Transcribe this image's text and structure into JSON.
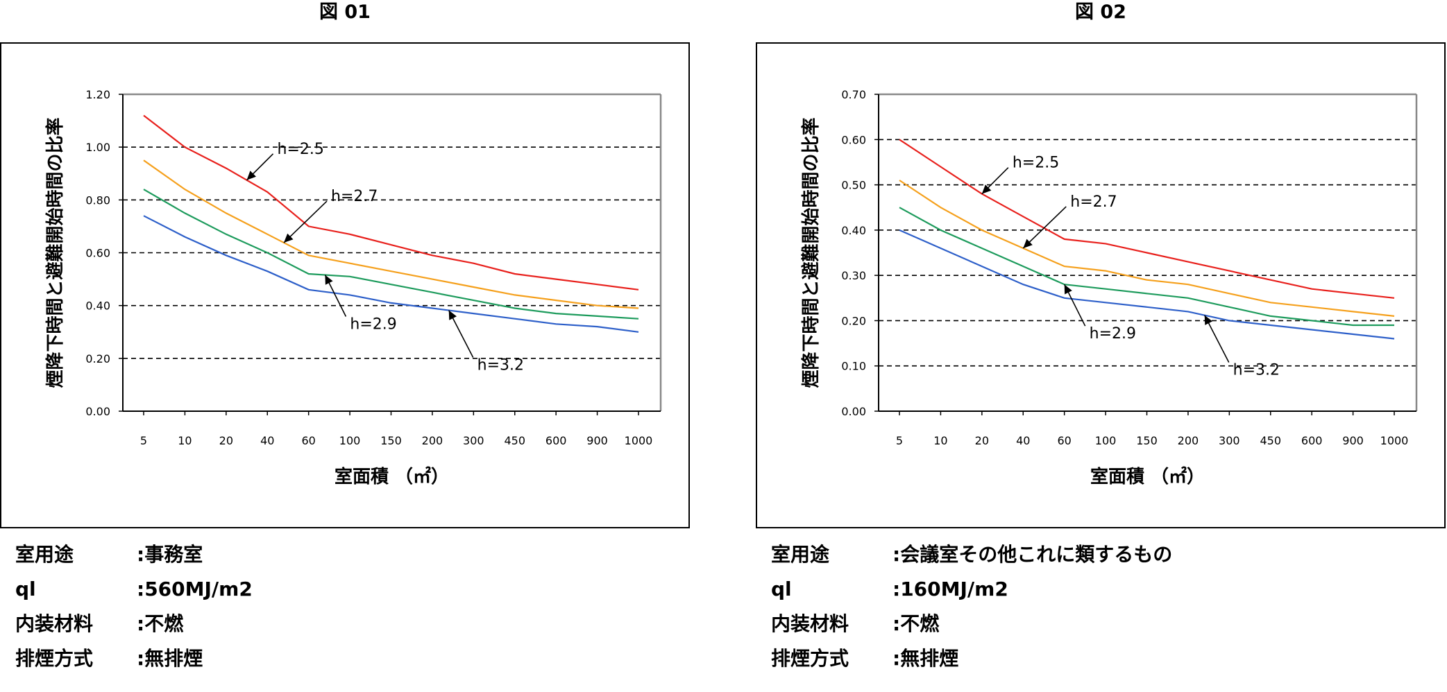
{
  "chart_data": [
    {
      "type": "line",
      "title": "図 01",
      "xlabel": "室面積 （㎡）",
      "ylabel": "煙降下時間と避難開始時間の比率",
      "categories": [
        "5",
        "10",
        "20",
        "40",
        "60",
        "100",
        "150",
        "200",
        "300",
        "450",
        "600",
        "900",
        "1000"
      ],
      "ylim": [
        0,
        1.2
      ],
      "yticks": [
        "0.00",
        "0.20",
        "0.40",
        "0.60",
        "0.80",
        "1.00",
        "1.20"
      ],
      "grid": "horizontal dashed",
      "colors": {
        "h=2.5": "#e8201c",
        "h=2.7": "#f5a01c",
        "h=2.9": "#1d9b5c",
        "h=3.2": "#2d5fc9"
      },
      "series": [
        {
          "name": "h=2.5",
          "values": [
            1.12,
            1.0,
            0.92,
            0.83,
            0.7,
            0.67,
            0.63,
            0.59,
            0.56,
            0.52,
            0.5,
            0.48,
            0.46
          ]
        },
        {
          "name": "h=2.7",
          "values": [
            0.95,
            0.84,
            0.75,
            0.67,
            0.59,
            0.56,
            0.53,
            0.5,
            0.47,
            0.44,
            0.42,
            0.4,
            0.39
          ]
        },
        {
          "name": "h=2.9",
          "values": [
            0.84,
            0.75,
            0.67,
            0.6,
            0.52,
            0.51,
            0.48,
            0.45,
            0.42,
            0.39,
            0.37,
            0.36,
            0.35
          ]
        },
        {
          "name": "h=3.2",
          "values": [
            0.74,
            0.66,
            0.59,
            0.53,
            0.46,
            0.44,
            0.41,
            0.39,
            0.37,
            0.35,
            0.33,
            0.32,
            0.3
          ]
        }
      ],
      "annotations": [
        {
          "text": "h=2.5",
          "series": "h=2.5",
          "target_x": 2.5
        },
        {
          "text": "h=2.7",
          "series": "h=2.7",
          "target_x": 3.4
        },
        {
          "text": "h=2.9",
          "series": "h=2.9",
          "target_x": 4.4
        },
        {
          "text": "h=3.2",
          "series": "h=3.2",
          "target_x": 7.4
        }
      ]
    },
    {
      "type": "line",
      "title": "図 02",
      "xlabel": "室面積 （㎡）",
      "ylabel": "煙降下時間と避難開始時間の比率",
      "categories": [
        "5",
        "10",
        "20",
        "40",
        "60",
        "100",
        "150",
        "200",
        "300",
        "450",
        "600",
        "900",
        "1000"
      ],
      "ylim": [
        0,
        0.7
      ],
      "yticks": [
        "0.00",
        "0.10",
        "0.20",
        "0.30",
        "0.40",
        "0.50",
        "0.60",
        "0.70"
      ],
      "grid": "horizontal dashed",
      "colors": {
        "h=2.5": "#e8201c",
        "h=2.7": "#f5a01c",
        "h=2.9": "#1d9b5c",
        "h=3.2": "#2d5fc9"
      },
      "series": [
        {
          "name": "h=2.5",
          "values": [
            0.6,
            0.54,
            0.48,
            0.43,
            0.38,
            0.37,
            0.35,
            0.33,
            0.31,
            0.29,
            0.27,
            0.26,
            0.25
          ]
        },
        {
          "name": "h=2.7",
          "values": [
            0.51,
            0.45,
            0.4,
            0.36,
            0.32,
            0.31,
            0.29,
            0.28,
            0.26,
            0.24,
            0.23,
            0.22,
            0.21
          ]
        },
        {
          "name": "h=2.9",
          "values": [
            0.45,
            0.4,
            0.36,
            0.32,
            0.28,
            0.27,
            0.26,
            0.25,
            0.23,
            0.21,
            0.2,
            0.19,
            0.19
          ]
        },
        {
          "name": "h=3.2",
          "values": [
            0.4,
            0.36,
            0.32,
            0.28,
            0.25,
            0.24,
            0.23,
            0.22,
            0.2,
            0.19,
            0.18,
            0.17,
            0.16
          ]
        }
      ],
      "annotations": [
        {
          "text": "h=2.5",
          "series": "h=2.5",
          "target_x": 2.0
        },
        {
          "text": "h=2.7",
          "series": "h=2.7",
          "target_x": 3.0
        },
        {
          "text": "h=2.9",
          "series": "h=2.9",
          "target_x": 4.0
        },
        {
          "text": "h=3.2",
          "series": "h=3.2",
          "target_x": 7.4
        }
      ]
    }
  ],
  "info": [
    [
      {
        "key": "室用途",
        "value": "事務室"
      },
      {
        "key": "ql",
        "value": "560MJ/m2"
      },
      {
        "key": "内装材料",
        "value": "不燃"
      },
      {
        "key": "排煙方式",
        "value": "無排煙"
      }
    ],
    [
      {
        "key": "室用途",
        "value": "会議室その他これに類するもの"
      },
      {
        "key": "ql",
        "value": "160MJ/m2"
      },
      {
        "key": "内装材料",
        "value": "不燃"
      },
      {
        "key": "排煙方式",
        "value": "無排煙"
      }
    ]
  ]
}
